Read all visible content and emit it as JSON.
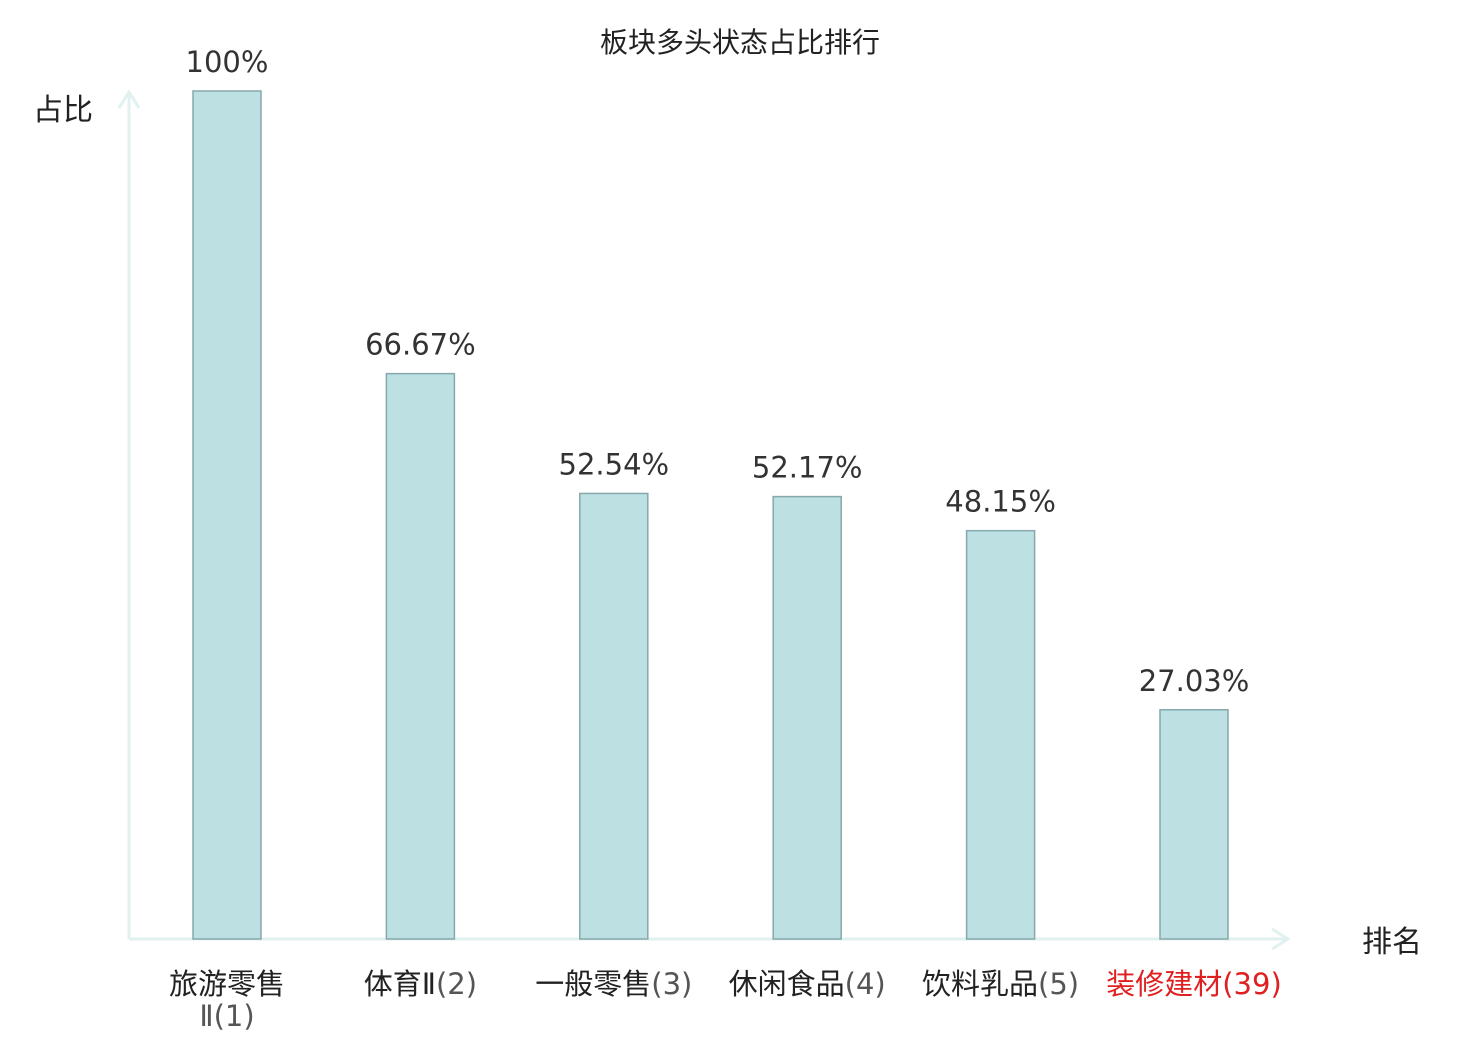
{
  "chart_data": {
    "type": "bar",
    "title": "板块多头状态占比排行",
    "xlabel": "排名",
    "ylabel": "占比",
    "ylim": [
      0,
      100
    ],
    "grid": false,
    "categories": [
      {
        "name": "旅游零售Ⅱ",
        "rank": "(1)",
        "highlight": false
      },
      {
        "name": "体育Ⅱ",
        "rank": "(2)",
        "highlight": false
      },
      {
        "name": "一般零售",
        "rank": "(3)",
        "highlight": false
      },
      {
        "name": "休闲食品",
        "rank": "(4)",
        "highlight": false
      },
      {
        "name": "饮料乳品",
        "rank": "(5)",
        "highlight": false
      },
      {
        "name": "装修建材",
        "rank": "(39)",
        "highlight": true
      }
    ],
    "values": [
      100,
      66.67,
      52.54,
      52.17,
      48.15,
      27.03
    ],
    "value_labels": [
      "100%",
      "66.67%",
      "52.54%",
      "52.17%",
      "48.15%",
      "27.03%"
    ]
  },
  "colors": {
    "bar_fill": "#bde0e2",
    "bar_stroke": "#86a8ad",
    "axis": "#e0f1ef",
    "text": "#222222",
    "value_text": "#333333",
    "rank_text": "#555555",
    "highlight": "#e02020"
  }
}
